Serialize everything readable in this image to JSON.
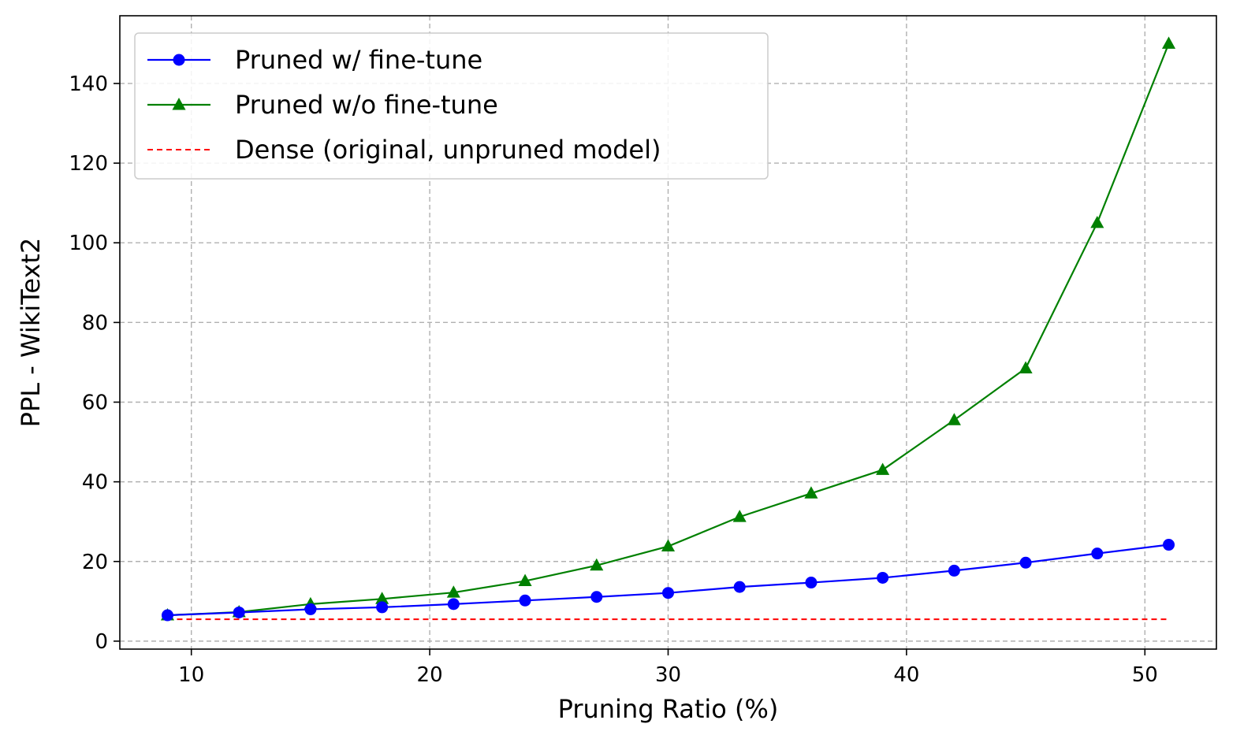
{
  "chart_data": {
    "type": "line",
    "xlabel": "Pruning Ratio (%)",
    "ylabel": "PPL - WikiText2",
    "xlim": [
      7,
      53
    ],
    "ylim": [
      -2,
      157
    ],
    "xticks": [
      10,
      20,
      30,
      40,
      50
    ],
    "yticks": [
      0,
      20,
      40,
      60,
      80,
      100,
      120,
      140
    ],
    "grid": true,
    "legend_position": "top-left",
    "x": [
      9,
      12,
      15,
      18,
      21,
      24,
      27,
      30,
      33,
      36,
      39,
      42,
      45,
      48,
      51
    ],
    "series": [
      {
        "name": "Pruned w/ fine-tune",
        "color": "#0000ff",
        "marker": "circle",
        "values": [
          6.5,
          7.2,
          8.0,
          8.5,
          9.3,
          10.2,
          11.1,
          12.1,
          13.6,
          14.7,
          15.9,
          17.7,
          19.7,
          22.0,
          24.2
        ]
      },
      {
        "name": "Pruned w/o fine-tune",
        "color": "#008000",
        "marker": "triangle",
        "values": [
          6.5,
          7.3,
          9.3,
          10.6,
          12.2,
          15.1,
          19.0,
          23.8,
          31.2,
          37.1,
          43.0,
          55.5,
          68.5,
          105.0,
          150.0
        ]
      },
      {
        "name": "Dense (original, unpruned model)",
        "color": "#ff0000",
        "style": "dashed",
        "x": [
          9,
          51
        ],
        "values": [
          5.5,
          5.5
        ]
      }
    ]
  }
}
